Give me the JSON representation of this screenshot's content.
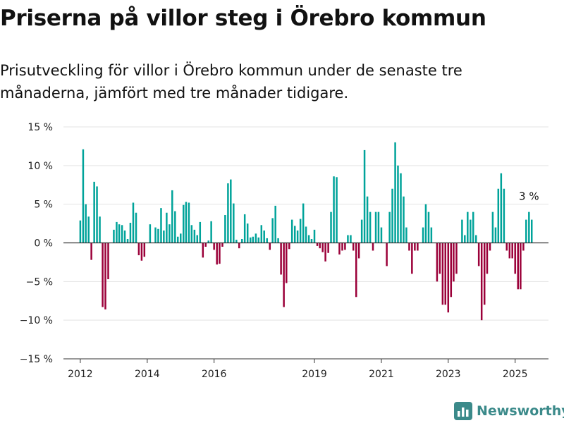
{
  "title": "Priserna på villor steg i Örebro kommun",
  "subtitle": "Prisutveckling för villor i Örebro kommun under de senaste tre månaderna, jämfört med tre månader tidigare.",
  "brand": "Newsworthy",
  "colors": {
    "positive": "#00a39a",
    "negative": "#9b0039",
    "grid": "#e3e3e3",
    "zero": "#333333",
    "brand": "#3b8a8a"
  },
  "chart_data": {
    "type": "bar",
    "title": "Priserna på villor steg i Örebro kommun",
    "subtitle": "Prisutveckling för villor i Örebro kommun under de senaste tre månaderna, jämfört med tre månader tidigare.",
    "xlabel": "",
    "ylabel": "",
    "unit": "%",
    "grid": true,
    "legend": "none",
    "ylim": [
      -15,
      15
    ],
    "yticks": [
      15,
      10,
      5,
      0,
      -5,
      -10,
      -15
    ],
    "ytick_labels": [
      "15 %",
      "10 %",
      "5 %",
      "0 %",
      "−5 %",
      "−10 %",
      "−15 %"
    ],
    "xlim": [
      "2011-07-01",
      "2025-12-31"
    ],
    "xticks": [
      "2012",
      "2014",
      "2016",
      "2019",
      "2021",
      "2023",
      "2025"
    ],
    "annotation": {
      "label": "3 %",
      "date": "2025-05-01",
      "value": 3
    },
    "values": [
      {
        "x": "2012-01-01",
        "y": 2.9
      },
      {
        "x": "2012-02-01",
        "y": 12.1
      },
      {
        "x": "2012-03-01",
        "y": 5
      },
      {
        "x": "2012-04-01",
        "y": 3.4
      },
      {
        "x": "2012-05-01",
        "y": -2.2
      },
      {
        "x": "2012-06-01",
        "y": 7.9
      },
      {
        "x": "2012-07-01",
        "y": 7.3
      },
      {
        "x": "2012-08-01",
        "y": 3.4
      },
      {
        "x": "2012-09-01",
        "y": -8.3
      },
      {
        "x": "2012-10-01",
        "y": -8.6
      },
      {
        "x": "2012-11-01",
        "y": -4.7
      },
      {
        "x": "2013-01-01",
        "y": 1.7
      },
      {
        "x": "2013-02-01",
        "y": 2.7
      },
      {
        "x": "2013-03-01",
        "y": 2.4
      },
      {
        "x": "2013-04-01",
        "y": 2.3
      },
      {
        "x": "2013-05-01",
        "y": 1.6
      },
      {
        "x": "2013-06-01",
        "y": 0.5
      },
      {
        "x": "2013-07-01",
        "y": 2.6
      },
      {
        "x": "2013-08-01",
        "y": 5.2
      },
      {
        "x": "2013-09-01",
        "y": 3.9
      },
      {
        "x": "2013-10-01",
        "y": -1.6
      },
      {
        "x": "2013-11-01",
        "y": -2.3
      },
      {
        "x": "2013-12-01",
        "y": -1.8
      },
      {
        "x": "2014-02-01",
        "y": 2.4
      },
      {
        "x": "2014-04-01",
        "y": 2
      },
      {
        "x": "2014-05-01",
        "y": 1.8
      },
      {
        "x": "2014-06-01",
        "y": 4.5
      },
      {
        "x": "2014-07-01",
        "y": 1.6
      },
      {
        "x": "2014-08-01",
        "y": 3.9
      },
      {
        "x": "2014-09-01",
        "y": 2.4
      },
      {
        "x": "2014-10-01",
        "y": 6.8
      },
      {
        "x": "2014-11-01",
        "y": 4.1
      },
      {
        "x": "2014-12-01",
        "y": 0.8
      },
      {
        "x": "2015-01-01",
        "y": 1.2
      },
      {
        "x": "2015-02-01",
        "y": 4.9
      },
      {
        "x": "2015-03-01",
        "y": 5.3
      },
      {
        "x": "2015-04-01",
        "y": 5.2
      },
      {
        "x": "2015-05-01",
        "y": 2.3
      },
      {
        "x": "2015-06-01",
        "y": 1.7
      },
      {
        "x": "2015-07-01",
        "y": 1
      },
      {
        "x": "2015-08-01",
        "y": 2.7
      },
      {
        "x": "2015-09-01",
        "y": -1.9
      },
      {
        "x": "2015-10-01",
        "y": -0.5
      },
      {
        "x": "2015-11-01",
        "y": 0.3
      },
      {
        "x": "2015-12-01",
        "y": 2.8
      },
      {
        "x": "2016-01-01",
        "y": -0.9
      },
      {
        "x": "2016-02-01",
        "y": -2.8
      },
      {
        "x": "2016-03-01",
        "y": -2.7
      },
      {
        "x": "2016-04-01",
        "y": -0.5
      },
      {
        "x": "2016-05-01",
        "y": 3.6
      },
      {
        "x": "2016-06-01",
        "y": 7.7
      },
      {
        "x": "2016-07-01",
        "y": 8.2
      },
      {
        "x": "2016-08-01",
        "y": 5.1
      },
      {
        "x": "2016-09-01",
        "y": 0.4
      },
      {
        "x": "2016-10-01",
        "y": -0.7
      },
      {
        "x": "2016-11-01",
        "y": 0.5
      },
      {
        "x": "2016-12-01",
        "y": 3.7
      },
      {
        "x": "2017-01-01",
        "y": 2.5
      },
      {
        "x": "2017-02-01",
        "y": 0.7
      },
      {
        "x": "2017-03-01",
        "y": 0.8
      },
      {
        "x": "2017-04-01",
        "y": 1.2
      },
      {
        "x": "2017-05-01",
        "y": 0.7
      },
      {
        "x": "2017-06-01",
        "y": 2.3
      },
      {
        "x": "2017-07-01",
        "y": 1.6
      },
      {
        "x": "2017-08-01",
        "y": 0.6
      },
      {
        "x": "2017-09-01",
        "y": -0.9
      },
      {
        "x": "2017-10-01",
        "y": 3.2
      },
      {
        "x": "2017-11-01",
        "y": 4.8
      },
      {
        "x": "2017-12-01",
        "y": 0.6
      },
      {
        "x": "2018-01-01",
        "y": -4.1
      },
      {
        "x": "2018-02-01",
        "y": -8.3
      },
      {
        "x": "2018-03-01",
        "y": -5.2
      },
      {
        "x": "2018-04-01",
        "y": -0.8
      },
      {
        "x": "2018-05-01",
        "y": 3
      },
      {
        "x": "2018-06-01",
        "y": 2.2
      },
      {
        "x": "2018-07-01",
        "y": 1.6
      },
      {
        "x": "2018-08-01",
        "y": 3.1
      },
      {
        "x": "2018-09-01",
        "y": 5.1
      },
      {
        "x": "2018-10-01",
        "y": 2.1
      },
      {
        "x": "2018-11-01",
        "y": 1
      },
      {
        "x": "2018-12-01",
        "y": 0.5
      },
      {
        "x": "2019-01-01",
        "y": 1.7
      },
      {
        "x": "2019-02-01",
        "y": -0.4
      },
      {
        "x": "2019-03-01",
        "y": -0.7
      },
      {
        "x": "2019-04-01",
        "y": -1.2
      },
      {
        "x": "2019-05-01",
        "y": -2.4
      },
      {
        "x": "2019-06-01",
        "y": -1.3
      },
      {
        "x": "2019-07-01",
        "y": 4
      },
      {
        "x": "2019-08-01",
        "y": 8.6
      },
      {
        "x": "2019-09-01",
        "y": 8.5
      },
      {
        "x": "2019-10-01",
        "y": -1.5
      },
      {
        "x": "2019-11-01",
        "y": -1
      },
      {
        "x": "2019-12-01",
        "y": -0.9
      },
      {
        "x": "2020-01-01",
        "y": 1
      },
      {
        "x": "2020-02-01",
        "y": 1
      },
      {
        "x": "2020-03-01",
        "y": -1
      },
      {
        "x": "2020-04-01",
        "y": -7
      },
      {
        "x": "2020-05-01",
        "y": -2
      },
      {
        "x": "2020-06-01",
        "y": 3
      },
      {
        "x": "2020-07-01",
        "y": 12
      },
      {
        "x": "2020-08-01",
        "y": 6
      },
      {
        "x": "2020-09-01",
        "y": 4
      },
      {
        "x": "2020-10-01",
        "y": -1
      },
      {
        "x": "2020-11-01",
        "y": 4
      },
      {
        "x": "2020-12-01",
        "y": 4
      },
      {
        "x": "2021-01-01",
        "y": 2
      },
      {
        "x": "2021-03-01",
        "y": -3
      },
      {
        "x": "2021-04-01",
        "y": 4
      },
      {
        "x": "2021-05-01",
        "y": 7
      },
      {
        "x": "2021-06-01",
        "y": 13
      },
      {
        "x": "2021-07-01",
        "y": 10
      },
      {
        "x": "2021-08-01",
        "y": 9
      },
      {
        "x": "2021-09-01",
        "y": 6
      },
      {
        "x": "2021-10-01",
        "y": 2
      },
      {
        "x": "2021-11-01",
        "y": -1
      },
      {
        "x": "2021-12-01",
        "y": -4
      },
      {
        "x": "2022-01-01",
        "y": -1
      },
      {
        "x": "2022-02-01",
        "y": -1
      },
      {
        "x": "2022-04-01",
        "y": 2
      },
      {
        "x": "2022-05-01",
        "y": 5
      },
      {
        "x": "2022-06-01",
        "y": 4
      },
      {
        "x": "2022-07-01",
        "y": 2
      },
      {
        "x": "2022-09-01",
        "y": -5
      },
      {
        "x": "2022-10-01",
        "y": -4
      },
      {
        "x": "2022-11-01",
        "y": -8
      },
      {
        "x": "2022-12-01",
        "y": -8
      },
      {
        "x": "2023-01-01",
        "y": -9
      },
      {
        "x": "2023-02-01",
        "y": -7
      },
      {
        "x": "2023-03-01",
        "y": -5
      },
      {
        "x": "2023-04-01",
        "y": -4
      },
      {
        "x": "2023-06-01",
        "y": 3
      },
      {
        "x": "2023-07-01",
        "y": 1
      },
      {
        "x": "2023-08-01",
        "y": 4
      },
      {
        "x": "2023-09-01",
        "y": 3
      },
      {
        "x": "2023-10-01",
        "y": 4
      },
      {
        "x": "2023-11-01",
        "y": 1
      },
      {
        "x": "2023-12-01",
        "y": -3
      },
      {
        "x": "2024-01-01",
        "y": -10
      },
      {
        "x": "2024-02-01",
        "y": -8
      },
      {
        "x": "2024-03-01",
        "y": -4
      },
      {
        "x": "2024-04-01",
        "y": -1
      },
      {
        "x": "2024-05-01",
        "y": 4
      },
      {
        "x": "2024-06-01",
        "y": 2
      },
      {
        "x": "2024-07-01",
        "y": 7
      },
      {
        "x": "2024-08-01",
        "y": 9
      },
      {
        "x": "2024-09-01",
        "y": 7
      },
      {
        "x": "2024-10-01",
        "y": -1
      },
      {
        "x": "2024-11-01",
        "y": -2
      },
      {
        "x": "2024-12-01",
        "y": -2
      },
      {
        "x": "2025-01-01",
        "y": -4
      },
      {
        "x": "2025-02-01",
        "y": -6
      },
      {
        "x": "2025-03-01",
        "y": -6
      },
      {
        "x": "2025-04-01",
        "y": -1
      },
      {
        "x": "2025-05-01",
        "y": 3
      },
      {
        "x": "2025-06-01",
        "y": 4
      },
      {
        "x": "2025-07-01",
        "y": 3
      }
    ]
  }
}
